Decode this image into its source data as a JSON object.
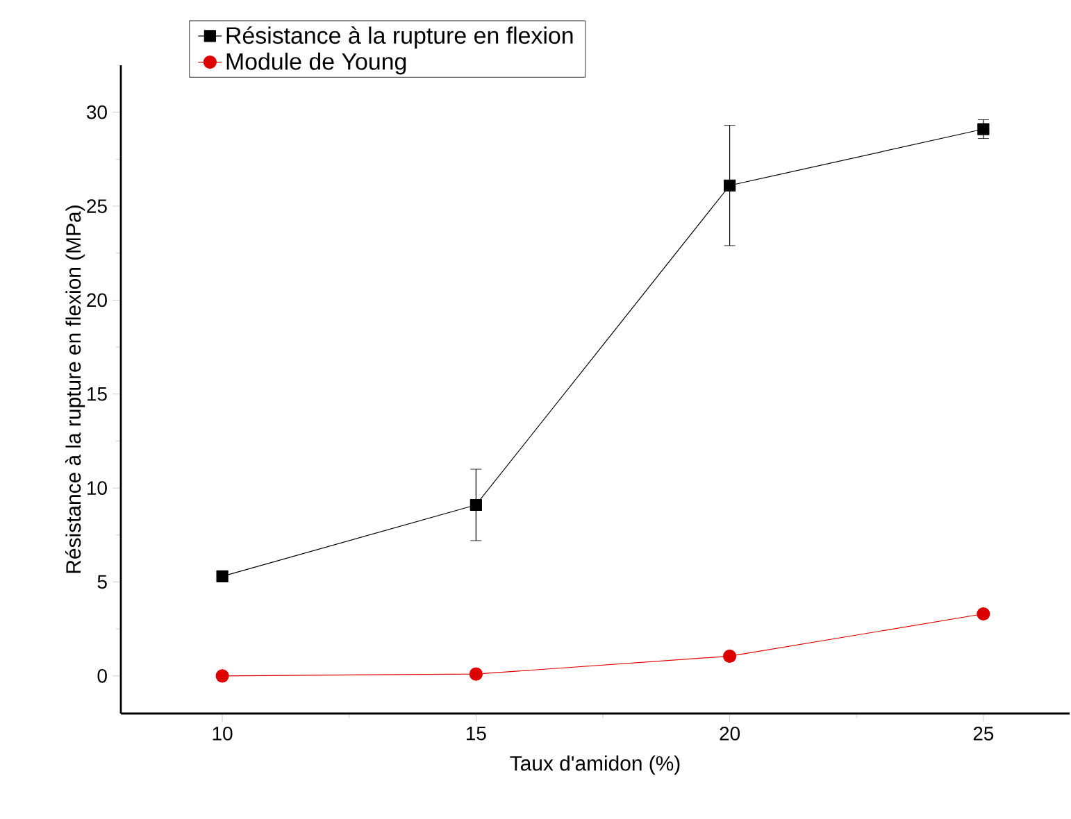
{
  "chart_data": {
    "type": "line",
    "xlabel": "Taux d'amidon (%)",
    "ylabel": "Résistance à la rupture en flexion (MPa)",
    "x": [
      10,
      15,
      20,
      25
    ],
    "series": [
      {
        "name": "Résistance à la rupture en flexion",
        "color": "#000000",
        "marker": "square",
        "values": [
          5.3,
          9.1,
          26.1,
          29.1
        ],
        "errors": [
          null,
          1.9,
          3.2,
          0.5
        ]
      },
      {
        "name": "Module de Young",
        "color": "#dd0000",
        "marker": "circle",
        "values": [
          0.0,
          0.1,
          1.05,
          3.3
        ]
      }
    ],
    "xlim": [
      8,
      26.7
    ],
    "ylim": [
      -2,
      32.5
    ],
    "xticks": [
      10,
      15,
      20,
      25
    ],
    "yticks": [
      0,
      5,
      10,
      15,
      20,
      25,
      30
    ],
    "legend": "top left",
    "grid": false,
    "line_style": "solid"
  }
}
